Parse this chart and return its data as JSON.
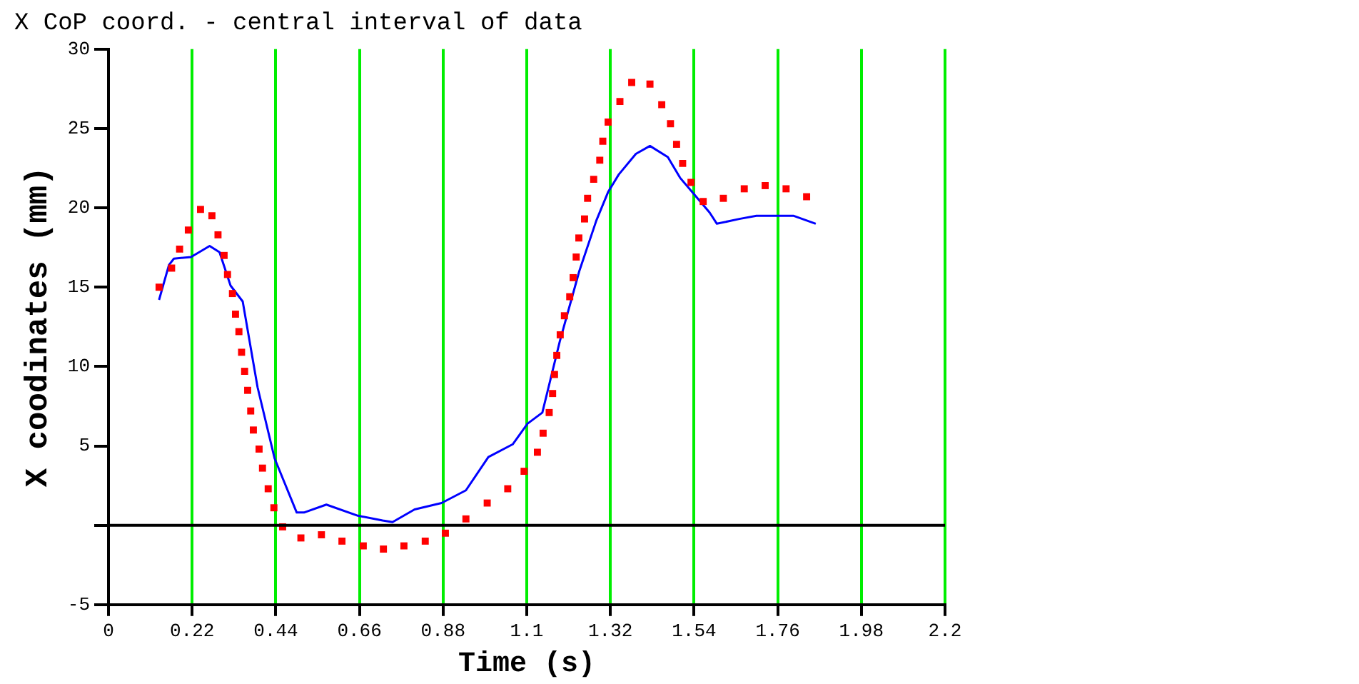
{
  "chart_data": {
    "type": "line",
    "title": "X CoP coord. - central interval of data",
    "xlabel": "Time (s)",
    "ylabel": "X coodinates (mm)",
    "xlim": [
      0,
      2.2
    ],
    "xticks": [
      0,
      0.22,
      0.44,
      0.66,
      0.88,
      1.1,
      1.32,
      1.54,
      1.76,
      1.98,
      2.2
    ],
    "ylim": [
      -5,
      30
    ],
    "yticks": [
      -5,
      {
        "value": 0,
        "label": null
      },
      5,
      10,
      15,
      20,
      25,
      30
    ],
    "grid": "x",
    "legend": false,
    "ref_lines": [
      {
        "axis": "y",
        "value": 0,
        "color": "#000000"
      }
    ],
    "series": [
      {
        "type": "scatter",
        "marker": "square",
        "color": "#ff0000",
        "x": [
          0.133,
          0.166,
          0.187,
          0.21,
          0.242,
          0.272,
          0.288,
          0.304,
          0.313,
          0.326,
          0.334,
          0.343,
          0.35,
          0.358,
          0.366,
          0.374,
          0.381,
          0.396,
          0.405,
          0.42,
          0.435,
          0.458,
          0.506,
          0.56,
          0.614,
          0.67,
          0.723,
          0.777,
          0.833,
          0.886,
          0.94,
          0.996,
          1.05,
          1.093,
          1.128,
          1.143,
          1.159,
          1.168,
          1.173,
          1.179,
          1.188,
          1.199,
          1.213,
          1.222,
          1.23,
          1.237,
          1.252,
          1.26,
          1.276,
          1.292,
          1.3,
          1.314,
          1.345,
          1.376,
          1.424,
          1.455,
          1.478,
          1.494,
          1.51,
          1.532,
          1.564,
          1.617,
          1.672,
          1.727,
          1.782,
          1.836
        ],
        "values": [
          15,
          16.2,
          17.4,
          18.6,
          19.9,
          19.5,
          18.3,
          17,
          15.8,
          14.6,
          13.3,
          12.2,
          10.9,
          9.7,
          8.5,
          7.2,
          6,
          4.8,
          3.6,
          2.3,
          1.1,
          -0.1,
          -0.8,
          -0.6,
          -1,
          -1.3,
          -1.5,
          -1.3,
          -1,
          -0.5,
          0.4,
          1.4,
          2.3,
          3.4,
          4.6,
          5.8,
          7.1,
          8.3,
          9.5,
          10.7,
          12,
          13.2,
          14.4,
          15.6,
          16.9,
          18.1,
          19.3,
          20.6,
          21.8,
          23,
          24.2,
          25.4,
          26.7,
          27.9,
          27.8,
          26.5,
          25.3,
          24,
          22.8,
          21.6,
          20.4,
          20.6,
          21.2,
          21.4,
          21.2,
          20.7
        ]
      },
      {
        "type": "line",
        "marker": "none",
        "line_style": "solid",
        "color": "#0000ff",
        "x": [
          0.133,
          0.159,
          0.172,
          0.217,
          0.266,
          0.292,
          0.321,
          0.353,
          0.392,
          0.437,
          0.495,
          0.514,
          0.573,
          0.656,
          0.721,
          0.747,
          0.805,
          0.876,
          0.94,
          0.999,
          1.063,
          1.102,
          1.141,
          1.187,
          1.238,
          1.283,
          1.314,
          1.342,
          1.387,
          1.424,
          1.471,
          1.503,
          1.542,
          1.581,
          1.6,
          1.659,
          1.704,
          1.801,
          1.86
        ],
        "values": [
          14.2,
          16.4,
          16.8,
          16.9,
          17.6,
          17.2,
          15.1,
          14.1,
          8.7,
          4.2,
          0.8,
          0.8,
          1.3,
          0.6,
          0.3,
          0.2,
          1,
          1.4,
          2.2,
          4.3,
          5.1,
          6.4,
          7.1,
          11.6,
          16,
          19.2,
          21,
          22.1,
          23.4,
          23.9,
          23.2,
          21.9,
          20.8,
          19.7,
          19,
          19.3,
          19.5,
          19.5,
          19
        ]
      }
    ]
  }
}
